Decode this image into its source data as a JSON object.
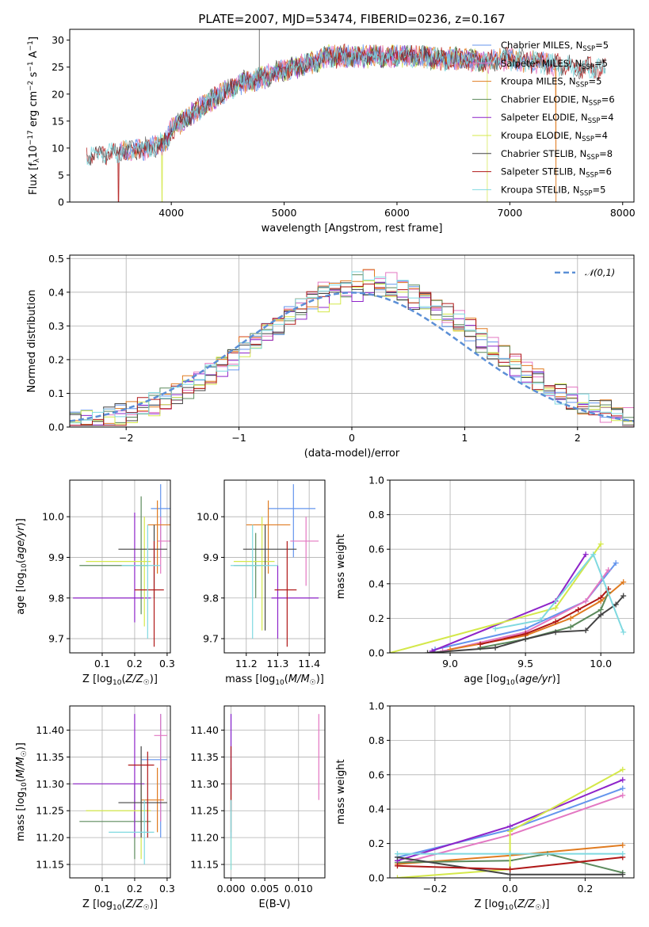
{
  "figure": {
    "title": "PLATE=2007, MJD=53474, FIBERID=0236, z=0.167"
  },
  "colors": {
    "Chabrier MILES": "#6495ed",
    "Salpeter MILES": "#e377c2",
    "Kroupa MILES": "#e07b20",
    "Chabrier ELODIE": "#5c8a5c",
    "Salpeter ELODIE": "#8e24c9",
    "Kroupa ELODIE": "#d4e84a",
    "Chabrier STELIB": "#444444",
    "Salpeter STELIB": "#b01818",
    "Kroupa STELIB": "#7fd9e0"
  },
  "chart_data": [
    {
      "id": "spectrum",
      "type": "line",
      "xlabel": "wavelength [Angstrom, rest frame]",
      "ylabel": "Flux [f_λ 10^-17 erg cm^-2 s^-1 A^-1]",
      "xlim": [
        3100,
        8100
      ],
      "ylim": [
        0,
        32
      ],
      "xticks": [
        4000,
        5000,
        6000,
        7000,
        8000
      ],
      "yticks": [
        0,
        5,
        10,
        15,
        20,
        25,
        30
      ],
      "grid": false,
      "legend_position": "top-right",
      "series": [
        {
          "name": "Chabrier MILES",
          "nssp": 5
        },
        {
          "name": "Salpeter MILES",
          "nssp": 5
        },
        {
          "name": "Kroupa MILES",
          "nssp": 5
        },
        {
          "name": "Chabrier ELODIE",
          "nssp": 6
        },
        {
          "name": "Salpeter ELODIE",
          "nssp": 4
        },
        {
          "name": "Kroupa ELODIE",
          "nssp": 4
        },
        {
          "name": "Chabrier STELIB",
          "nssp": 8
        },
        {
          "name": "Salpeter STELIB",
          "nssp": 6
        },
        {
          "name": "Kroupa STELIB",
          "nssp": 5
        }
      ],
      "continuum": {
        "x": [
          3250,
          3400,
          3600,
          3800,
          3950,
          4000,
          4200,
          4400,
          4600,
          4800,
          5000,
          5200,
          5400,
          5600,
          5800,
          6000,
          6200,
          6400,
          6600,
          6800,
          7000,
          7200,
          7400,
          7600,
          7850
        ],
        "y": [
          8.5,
          9.0,
          9.5,
          10.0,
          11.0,
          13.5,
          16.5,
          19.5,
          22.0,
          23.0,
          24.5,
          25.5,
          27.0,
          27.0,
          27.0,
          27.0,
          27.0,
          26.5,
          26.5,
          26.0,
          26.5,
          26.0,
          25.5,
          25.0,
          24.5
        ]
      },
      "dropouts": [
        {
          "x": 3530,
          "series": "Salpeter STELIB"
        },
        {
          "x": 3920,
          "series": "Kroupa ELODIE"
        },
        {
          "x": 6800,
          "series": "Kroupa ELODIE"
        },
        {
          "x": 7410,
          "series": "Kroupa MILES"
        }
      ]
    },
    {
      "id": "residuals",
      "type": "area",
      "xlabel": "(data-model)/error",
      "ylabel": "Normed distribution",
      "xlim": [
        -2.5,
        2.5
      ],
      "ylim": [
        0,
        0.51
      ],
      "xticks": [
        -2,
        -1,
        0,
        1,
        2
      ],
      "yticks": [
        0.0,
        0.1,
        0.2,
        0.3,
        0.4,
        0.5
      ],
      "grid": true,
      "legend_position": "top-right",
      "reference_label": "𝒩(0,1)",
      "bin_edges": [
        -2.5,
        2.5
      ],
      "bin_count": 50
    },
    {
      "id": "z-age",
      "type": "scatter",
      "xlabel": "Z [log10(Z/Z☉)]",
      "ylabel": "age [log10(age/yr)]",
      "xlim": [
        0.0,
        0.31
      ],
      "ylim": [
        9.665,
        10.09
      ],
      "xticks": [
        0.1,
        0.2,
        0.3
      ],
      "yticks": [
        9.7,
        9.8,
        9.9,
        10.0
      ],
      "grid": true,
      "points": [
        {
          "series": "Chabrier MILES",
          "x": 0.28,
          "y": 10.02,
          "xerr": [
            0.25,
            0.31
          ],
          "yerr": [
            9.9,
            10.08
          ]
        },
        {
          "series": "Salpeter MILES",
          "x": 0.28,
          "y": 9.94,
          "xerr": [
            0.27,
            0.31
          ],
          "yerr": [
            9.86,
            10.0
          ]
        },
        {
          "series": "Kroupa MILES",
          "x": 0.27,
          "y": 9.98,
          "xerr": [
            0.24,
            0.31
          ],
          "yerr": [
            9.86,
            10.04
          ]
        },
        {
          "series": "Chabrier ELODIE",
          "x": 0.22,
          "y": 9.88,
          "xerr": [
            0.03,
            0.24
          ],
          "yerr": [
            9.76,
            10.05
          ]
        },
        {
          "series": "Salpeter ELODIE",
          "x": 0.2,
          "y": 9.8,
          "xerr": [
            0.01,
            0.25
          ],
          "yerr": [
            9.74,
            10.01
          ]
        },
        {
          "series": "Kroupa ELODIE",
          "x": 0.23,
          "y": 9.89,
          "xerr": [
            0.05,
            0.25
          ],
          "yerr": [
            9.73,
            10.0
          ]
        },
        {
          "series": "Chabrier STELIB",
          "x": 0.26,
          "y": 9.92,
          "xerr": [
            0.15,
            0.3
          ],
          "yerr": [
            9.8,
            9.98
          ]
        },
        {
          "series": "Salpeter STELIB",
          "x": 0.26,
          "y": 9.82,
          "xerr": [
            0.2,
            0.29
          ],
          "yerr": [
            9.68,
            9.94
          ]
        },
        {
          "series": "Kroupa STELIB",
          "x": 0.24,
          "y": 9.88,
          "xerr": [
            0.16,
            0.28
          ],
          "yerr": [
            9.7,
            9.98
          ]
        }
      ]
    },
    {
      "id": "mass-age",
      "type": "scatter",
      "xlabel": "mass [log10(M/M☉)]",
      "ylabel": "",
      "xlim": [
        11.13,
        11.45
      ],
      "ylim": [
        9.665,
        10.09
      ],
      "xticks": [
        11.2,
        11.3,
        11.4
      ],
      "yticks": [
        9.7,
        9.8,
        9.9,
        10.0
      ],
      "grid": true,
      "points": [
        {
          "series": "Chabrier MILES",
          "x": 11.35,
          "y": 10.02,
          "xerr": [
            11.27,
            11.42
          ],
          "yerr": [
            9.9,
            10.08
          ]
        },
        {
          "series": "Salpeter MILES",
          "x": 11.39,
          "y": 9.94,
          "xerr": [
            11.34,
            11.43
          ],
          "yerr": [
            9.83,
            10.0
          ]
        },
        {
          "series": "Kroupa MILES",
          "x": 11.27,
          "y": 9.98,
          "xerr": [
            11.2,
            11.34
          ],
          "yerr": [
            9.86,
            10.04
          ]
        },
        {
          "series": "Chabrier ELODIE",
          "x": 11.23,
          "y": 9.88,
          "xerr": [
            11.16,
            11.26
          ],
          "yerr": [
            9.8,
            9.96
          ]
        },
        {
          "series": "Salpeter ELODIE",
          "x": 11.3,
          "y": 9.8,
          "xerr": [
            11.28,
            11.43
          ],
          "yerr": [
            9.7,
            9.88
          ]
        },
        {
          "series": "Kroupa ELODIE",
          "x": 11.25,
          "y": 9.89,
          "xerr": [
            11.16,
            11.29
          ],
          "yerr": [
            9.72,
            10.0
          ]
        },
        {
          "series": "Chabrier STELIB",
          "x": 11.26,
          "y": 9.92,
          "xerr": [
            11.19,
            11.36
          ],
          "yerr": [
            9.72,
            9.98
          ]
        },
        {
          "series": "Salpeter STELIB",
          "x": 11.33,
          "y": 9.82,
          "xerr": [
            11.29,
            11.36
          ],
          "yerr": [
            9.68,
            9.94
          ]
        },
        {
          "series": "Kroupa STELIB",
          "x": 11.22,
          "y": 9.88,
          "xerr": [
            11.15,
            11.3
          ],
          "yerr": [
            9.7,
            9.98
          ]
        }
      ]
    },
    {
      "id": "age-weight",
      "type": "line",
      "xlabel": "age [log10(age/yr)]",
      "ylabel": "mass weight",
      "xlim": [
        8.6,
        10.22
      ],
      "ylim": [
        0,
        1.0
      ],
      "xticks": [
        9.0,
        9.5,
        10.0
      ],
      "yticks": [
        0.0,
        0.2,
        0.4,
        0.6,
        0.8,
        1.0
      ],
      "grid": true,
      "series": [
        {
          "name": "Chabrier MILES",
          "x": [
            8.9,
            9.5,
            9.9,
            10.1
          ],
          "y": [
            0.02,
            0.14,
            0.3,
            0.52
          ]
        },
        {
          "name": "Salpeter MILES",
          "x": [
            8.95,
            9.5,
            9.9,
            10.05
          ],
          "y": [
            0.01,
            0.12,
            0.3,
            0.48
          ]
        },
        {
          "name": "Kroupa MILES",
          "x": [
            9.0,
            9.5,
            9.8,
            10.0,
            10.15
          ],
          "y": [
            0.02,
            0.1,
            0.2,
            0.3,
            0.41
          ]
        },
        {
          "name": "Chabrier ELODIE",
          "x": [
            9.2,
            9.5,
            9.8,
            10.0,
            10.05
          ],
          "y": [
            0.03,
            0.08,
            0.15,
            0.25,
            0.35
          ]
        },
        {
          "name": "Salpeter ELODIE",
          "x": [
            8.88,
            9.7,
            9.9
          ],
          "y": [
            0.01,
            0.3,
            0.57
          ]
        },
        {
          "name": "Kroupa ELODIE",
          "x": [
            8.6,
            9.7,
            10.0
          ],
          "y": [
            0.0,
            0.26,
            0.63
          ]
        },
        {
          "name": "Chabrier STELIB",
          "x": [
            8.85,
            9.3,
            9.5,
            9.7,
            9.9,
            10.0,
            10.1,
            10.15
          ],
          "y": [
            0.0,
            0.03,
            0.08,
            0.12,
            0.13,
            0.22,
            0.28,
            0.33
          ]
        },
        {
          "name": "Salpeter STELIB",
          "x": [
            9.2,
            9.5,
            9.7,
            9.85,
            10.0,
            10.05
          ],
          "y": [
            0.05,
            0.11,
            0.18,
            0.25,
            0.32,
            0.37
          ]
        },
        {
          "name": "Kroupa STELIB",
          "x": [
            9.3,
            9.6,
            9.95,
            10.15
          ],
          "y": [
            0.14,
            0.19,
            0.57,
            0.12
          ]
        }
      ]
    },
    {
      "id": "z-mass",
      "type": "scatter",
      "xlabel": "Z [log10(Z/Z☉)]",
      "ylabel": "mass [log10(M/M☉)]",
      "xlim": [
        0.0,
        0.31
      ],
      "ylim": [
        11.125,
        11.445
      ],
      "xticks": [
        0.1,
        0.2,
        0.3
      ],
      "yticks": [
        11.15,
        11.2,
        11.25,
        11.3,
        11.35,
        11.4
      ],
      "grid": true,
      "points": [
        {
          "series": "Chabrier MILES",
          "x": 0.28,
          "y": 11.345,
          "xerr": [
            0.22,
            0.3
          ],
          "yerr": [
            11.2,
            11.43
          ]
        },
        {
          "series": "Salpeter MILES",
          "x": 0.28,
          "y": 11.39,
          "xerr": [
            0.26,
            0.3
          ],
          "yerr": [
            11.23,
            11.43
          ]
        },
        {
          "series": "Kroupa MILES",
          "x": 0.27,
          "y": 11.27,
          "xerr": [
            0.22,
            0.29
          ],
          "yerr": [
            11.21,
            11.33
          ]
        },
        {
          "series": "Chabrier ELODIE",
          "x": 0.2,
          "y": 11.23,
          "xerr": [
            0.03,
            0.25
          ],
          "yerr": [
            11.16,
            11.3
          ]
        },
        {
          "series": "Salpeter ELODIE",
          "x": 0.2,
          "y": 11.3,
          "xerr": [
            0.01,
            0.23
          ],
          "yerr": [
            11.2,
            11.43
          ]
        },
        {
          "series": "Kroupa ELODIE",
          "x": 0.22,
          "y": 11.25,
          "xerr": [
            0.05,
            0.25
          ],
          "yerr": [
            11.16,
            11.3
          ]
        },
        {
          "series": "Chabrier STELIB",
          "x": 0.22,
          "y": 11.265,
          "xerr": [
            0.15,
            0.3
          ],
          "yerr": [
            11.2,
            11.37
          ]
        },
        {
          "series": "Salpeter STELIB",
          "x": 0.24,
          "y": 11.335,
          "xerr": [
            0.18,
            0.26
          ],
          "yerr": [
            11.2,
            11.36
          ]
        },
        {
          "series": "Kroupa STELIB",
          "x": 0.23,
          "y": 11.21,
          "xerr": [
            0.12,
            0.26
          ],
          "yerr": [
            11.15,
            11.27
          ]
        }
      ]
    },
    {
      "id": "ebv-mass",
      "type": "scatter",
      "xlabel": "E(B-V)",
      "ylabel": "",
      "xlim": [
        -0.001,
        0.0139
      ],
      "ylim": [
        11.125,
        11.445
      ],
      "xticks": [
        0.0,
        0.005,
        0.01
      ],
      "xticklabels": [
        "0.000",
        "0.005",
        "0.010"
      ],
      "yticks": [
        11.15,
        11.2,
        11.25,
        11.3,
        11.35,
        11.4
      ],
      "grid": true,
      "points": [
        {
          "series": "Chabrier MILES",
          "x": 0.0,
          "y": 11.345,
          "xerr": [
            0.0,
            0.0
          ],
          "yerr": [
            11.2,
            11.43
          ]
        },
        {
          "series": "Salpeter MILES",
          "x": 0.013,
          "y": 11.35,
          "xerr": [
            0.013,
            0.013
          ],
          "yerr": [
            11.27,
            11.43
          ]
        },
        {
          "series": "Kroupa MILES",
          "x": 0.0,
          "y": 11.27,
          "xerr": [
            0.0,
            0.0
          ],
          "yerr": [
            11.21,
            11.33
          ]
        },
        {
          "series": "Salpeter ELODIE",
          "x": 0.0,
          "y": 11.3,
          "xerr": [
            0.0,
            0.0
          ],
          "yerr": [
            11.2,
            11.43
          ]
        },
        {
          "series": "Kroupa ELODIE",
          "x": 0.0,
          "y": 11.2,
          "xerr": [
            0.0,
            0.0
          ],
          "yerr": [
            11.14,
            11.28
          ]
        },
        {
          "series": "Salpeter STELIB",
          "x": 0.0,
          "y": 11.3,
          "xerr": [
            0.0,
            0.0
          ],
          "yerr": [
            11.25,
            11.37
          ]
        },
        {
          "series": "Kroupa STELIB",
          "x": 0.0,
          "y": 11.21,
          "xerr": [
            0.0,
            0.0
          ],
          "yerr": [
            11.14,
            11.27
          ]
        }
      ]
    },
    {
      "id": "z-weight",
      "type": "line",
      "xlabel": "Z [log10(Z/Z☉)]",
      "ylabel": "mass weight",
      "xlim": [
        -0.32,
        0.33
      ],
      "ylim": [
        0,
        1.0
      ],
      "xticks": [
        -0.2,
        0.0,
        0.2
      ],
      "yticks": [
        0.0,
        0.2,
        0.4,
        0.6,
        0.8,
        1.0
      ],
      "grid": true,
      "series": [
        {
          "name": "Chabrier MILES",
          "x": [
            -0.3,
            0.0,
            0.3
          ],
          "y": [
            0.12,
            0.28,
            0.52
          ]
        },
        {
          "name": "Salpeter MILES",
          "x": [
            -0.3,
            0.0,
            0.3
          ],
          "y": [
            0.08,
            0.25,
            0.48
          ]
        },
        {
          "name": "Kroupa MILES",
          "x": [
            -0.3,
            0.0,
            0.3
          ],
          "y": [
            0.08,
            0.13,
            0.19
          ]
        },
        {
          "name": "Chabrier ELODIE",
          "x": [
            -0.3,
            0.0,
            0.1,
            0.3
          ],
          "y": [
            0.09,
            0.1,
            0.14,
            0.03
          ]
        },
        {
          "name": "Salpeter ELODIE",
          "x": [
            -0.3,
            0.0,
            0.3
          ],
          "y": [
            0.1,
            0.3,
            0.57
          ]
        },
        {
          "name": "Kroupa ELODIE",
          "x": [
            -0.3,
            0.0,
            0.0,
            0.3
          ],
          "y": [
            0.0,
            0.05,
            0.27,
            0.63
          ]
        },
        {
          "name": "Chabrier STELIB",
          "x": [
            -0.3,
            0.0,
            0.3
          ],
          "y": [
            0.12,
            0.02,
            0.02
          ]
        },
        {
          "name": "Salpeter STELIB",
          "x": [
            -0.3,
            0.0,
            0.3
          ],
          "y": [
            0.07,
            0.05,
            0.12
          ]
        },
        {
          "name": "Kroupa STELIB",
          "x": [
            -0.3,
            0.0,
            0.3
          ],
          "y": [
            0.14,
            0.14,
            0.14
          ]
        }
      ]
    }
  ]
}
